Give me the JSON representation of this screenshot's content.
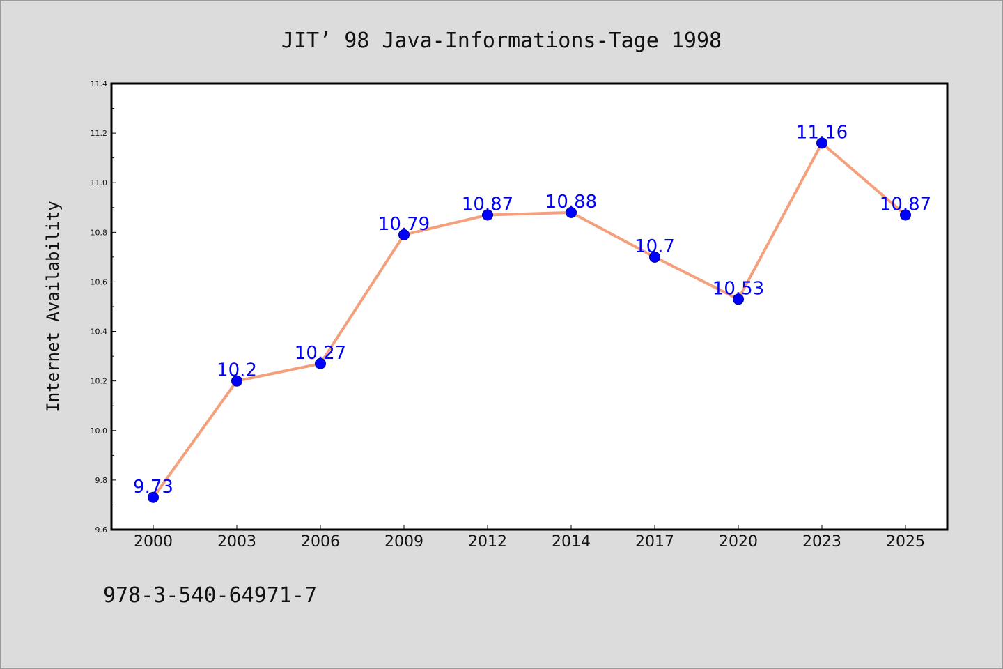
{
  "chart_data": {
    "type": "line",
    "title": "JIT’ 98 Java-Informations-Tage 1998",
    "xlabel": "",
    "ylabel": "Internet Availability",
    "categories": [
      "2000",
      "2003",
      "2006",
      "2009",
      "2012",
      "2014",
      "2017",
      "2020",
      "2023",
      "2025"
    ],
    "series": [
      {
        "values": [
          9.73,
          10.2,
          10.27,
          10.79,
          10.87,
          10.88,
          10.7,
          10.53,
          11.16,
          10.87
        ],
        "labels": [
          "9.73",
          "10.2",
          "10.27",
          "10.79",
          "10.87",
          "10.88",
          "10.7",
          "10.53",
          "11.16",
          "10.87"
        ],
        "line_color": "#f4a07c",
        "marker_color": "#0000ff"
      }
    ],
    "ylim": [
      9.6,
      11.4
    ],
    "yticks": [
      "9.6",
      "9.8",
      "10.0",
      "10.2",
      "10.4",
      "10.6",
      "10.8",
      "11.0",
      "11.2",
      "11.4"
    ],
    "grid": false,
    "legend": "none",
    "background_color": "#dcdcdc",
    "plot_background_color": "#ffffff"
  },
  "footer": {
    "note": "978-3-540-64971-7"
  }
}
